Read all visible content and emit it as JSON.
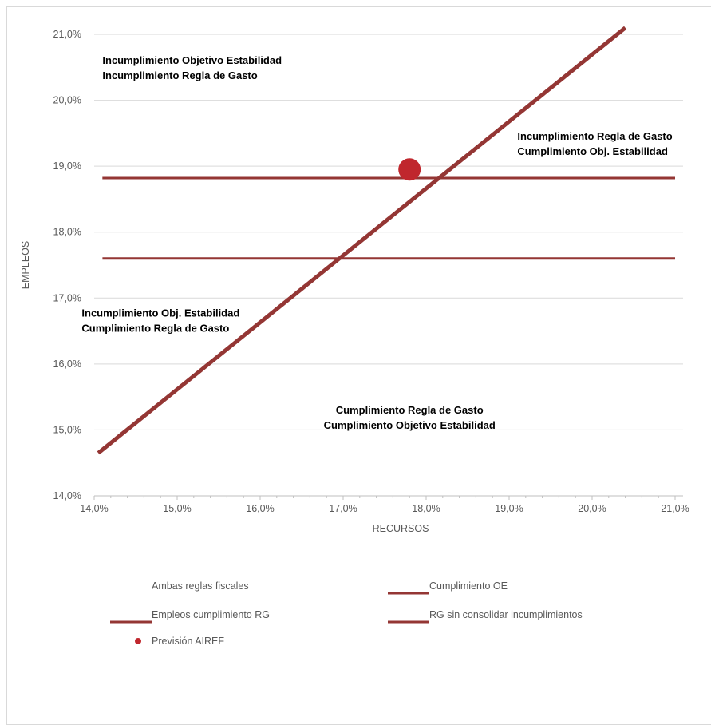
{
  "chart_data": {
    "type": "line",
    "xlabel": "RECURSOS",
    "ylabel": "EMPLEOS",
    "xlim": [
      14.0,
      21.0
    ],
    "ylim": [
      14.0,
      21.0
    ],
    "x_ticks": [
      "14,0%",
      "15,0%",
      "16,0%",
      "17,0%",
      "18,0%",
      "19,0%",
      "20,0%",
      "21,0%"
    ],
    "y_ticks": [
      "14,0%",
      "15,0%",
      "16,0%",
      "17,0%",
      "18,0%",
      "19,0%",
      "20,0%",
      "21,0%"
    ],
    "grid": "horizontal",
    "series": [
      {
        "name": "Ambas reglas fiscales",
        "kind": "diagonal",
        "color": "#943634",
        "points": [
          [
            14.05,
            14.65
          ],
          [
            20.4,
            21.1
          ]
        ]
      },
      {
        "name": "Cumplimiento OE",
        "kind": "hline",
        "color": "#943634",
        "y": 18.82,
        "x_range": [
          14.1,
          21.0
        ]
      },
      {
        "name": "Empleos cumplimiento RG",
        "kind": "hline",
        "color": "#943634",
        "y": 17.6,
        "x_range": [
          14.1,
          21.0
        ]
      },
      {
        "name": "RG sin consolidar incumplimientos",
        "kind": "hline",
        "color": "#943634",
        "y": 18.82,
        "x_range": [
          14.1,
          21.0
        ]
      },
      {
        "name": "Previsión AIREF",
        "kind": "point",
        "color": "#c0272d",
        "x": 17.8,
        "y": 18.95
      }
    ],
    "annotations": [
      {
        "lines": [
          "Incumplimiento Objetivo Estabilidad",
          "Incumplimiento Regla de Gasto"
        ],
        "x": 14.1,
        "y": 20.55,
        "color": "#000000"
      },
      {
        "lines": [
          "Incumplimiento Regla de Gasto",
          "Cumplimiento Obj. Estabilidad"
        ],
        "x": 19.1,
        "y": 19.4,
        "color": "#000000"
      },
      {
        "lines": [
          "Incumplimiento Obj. Estabilidad",
          "Cumplimiento Regla de Gasto"
        ],
        "x": 13.85,
        "y": 16.72,
        "color": "#000000"
      },
      {
        "lines": [
          "Cumplimiento Regla de  Gasto",
          "Cumplimiento Objetivo Estabilidad"
        ],
        "x": 17.8,
        "y": 15.25,
        "color": "#2e75b6",
        "anchor": "middle"
      }
    ],
    "legend": {
      "placement": "bottom",
      "items": [
        {
          "label": "Ambas reglas fiscales",
          "marker": "none"
        },
        {
          "label": "Cumplimiento OE",
          "marker": "line"
        },
        {
          "label": "Empleos cumplimiento RG",
          "marker": "line"
        },
        {
          "label": "RG sin consolidar incumplimientos",
          "marker": "line"
        },
        {
          "label": "Previsión AIREF",
          "marker": "dot"
        }
      ]
    }
  }
}
